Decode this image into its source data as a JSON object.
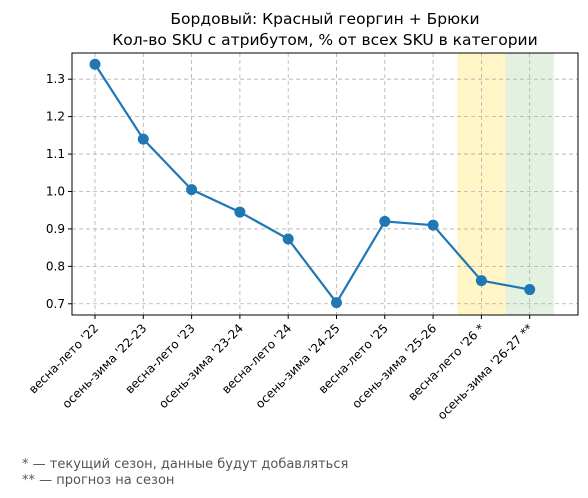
{
  "chart_data": {
    "type": "line",
    "title_line1": "Бордовый: Красный георгин + Брюки",
    "title_line2": "Кол-во SKU с атрибутом, % от всех SKU в категории",
    "categories": [
      "весна-лето '22",
      "осень-зима '22-23",
      "весна-лето '23",
      "осень-зима '23-24",
      "весна-лето '24",
      "осень-зима '24-25",
      "весна-лето '25",
      "осень-зима '25-26",
      "весна-лето '26 *",
      "осень-зима '26-27 **"
    ],
    "values": [
      1.34,
      1.14,
      1.005,
      0.945,
      0.873,
      0.703,
      0.92,
      0.91,
      0.762,
      0.738
    ],
    "ylim": [
      0.67,
      1.37
    ],
    "yticks": [
      "0.7",
      "0.8",
      "0.9",
      "1.0",
      "1.1",
      "1.2",
      "1.3"
    ],
    "grid": true,
    "line_color": "#1f77b4",
    "highlight_current_color": "#fff2b3",
    "highlight_forecast_color": "#d9ecd6"
  },
  "notes": {
    "current": "* — текущий сезон, данные будут добавляться",
    "forecast": "** — прогноз на сезон"
  }
}
